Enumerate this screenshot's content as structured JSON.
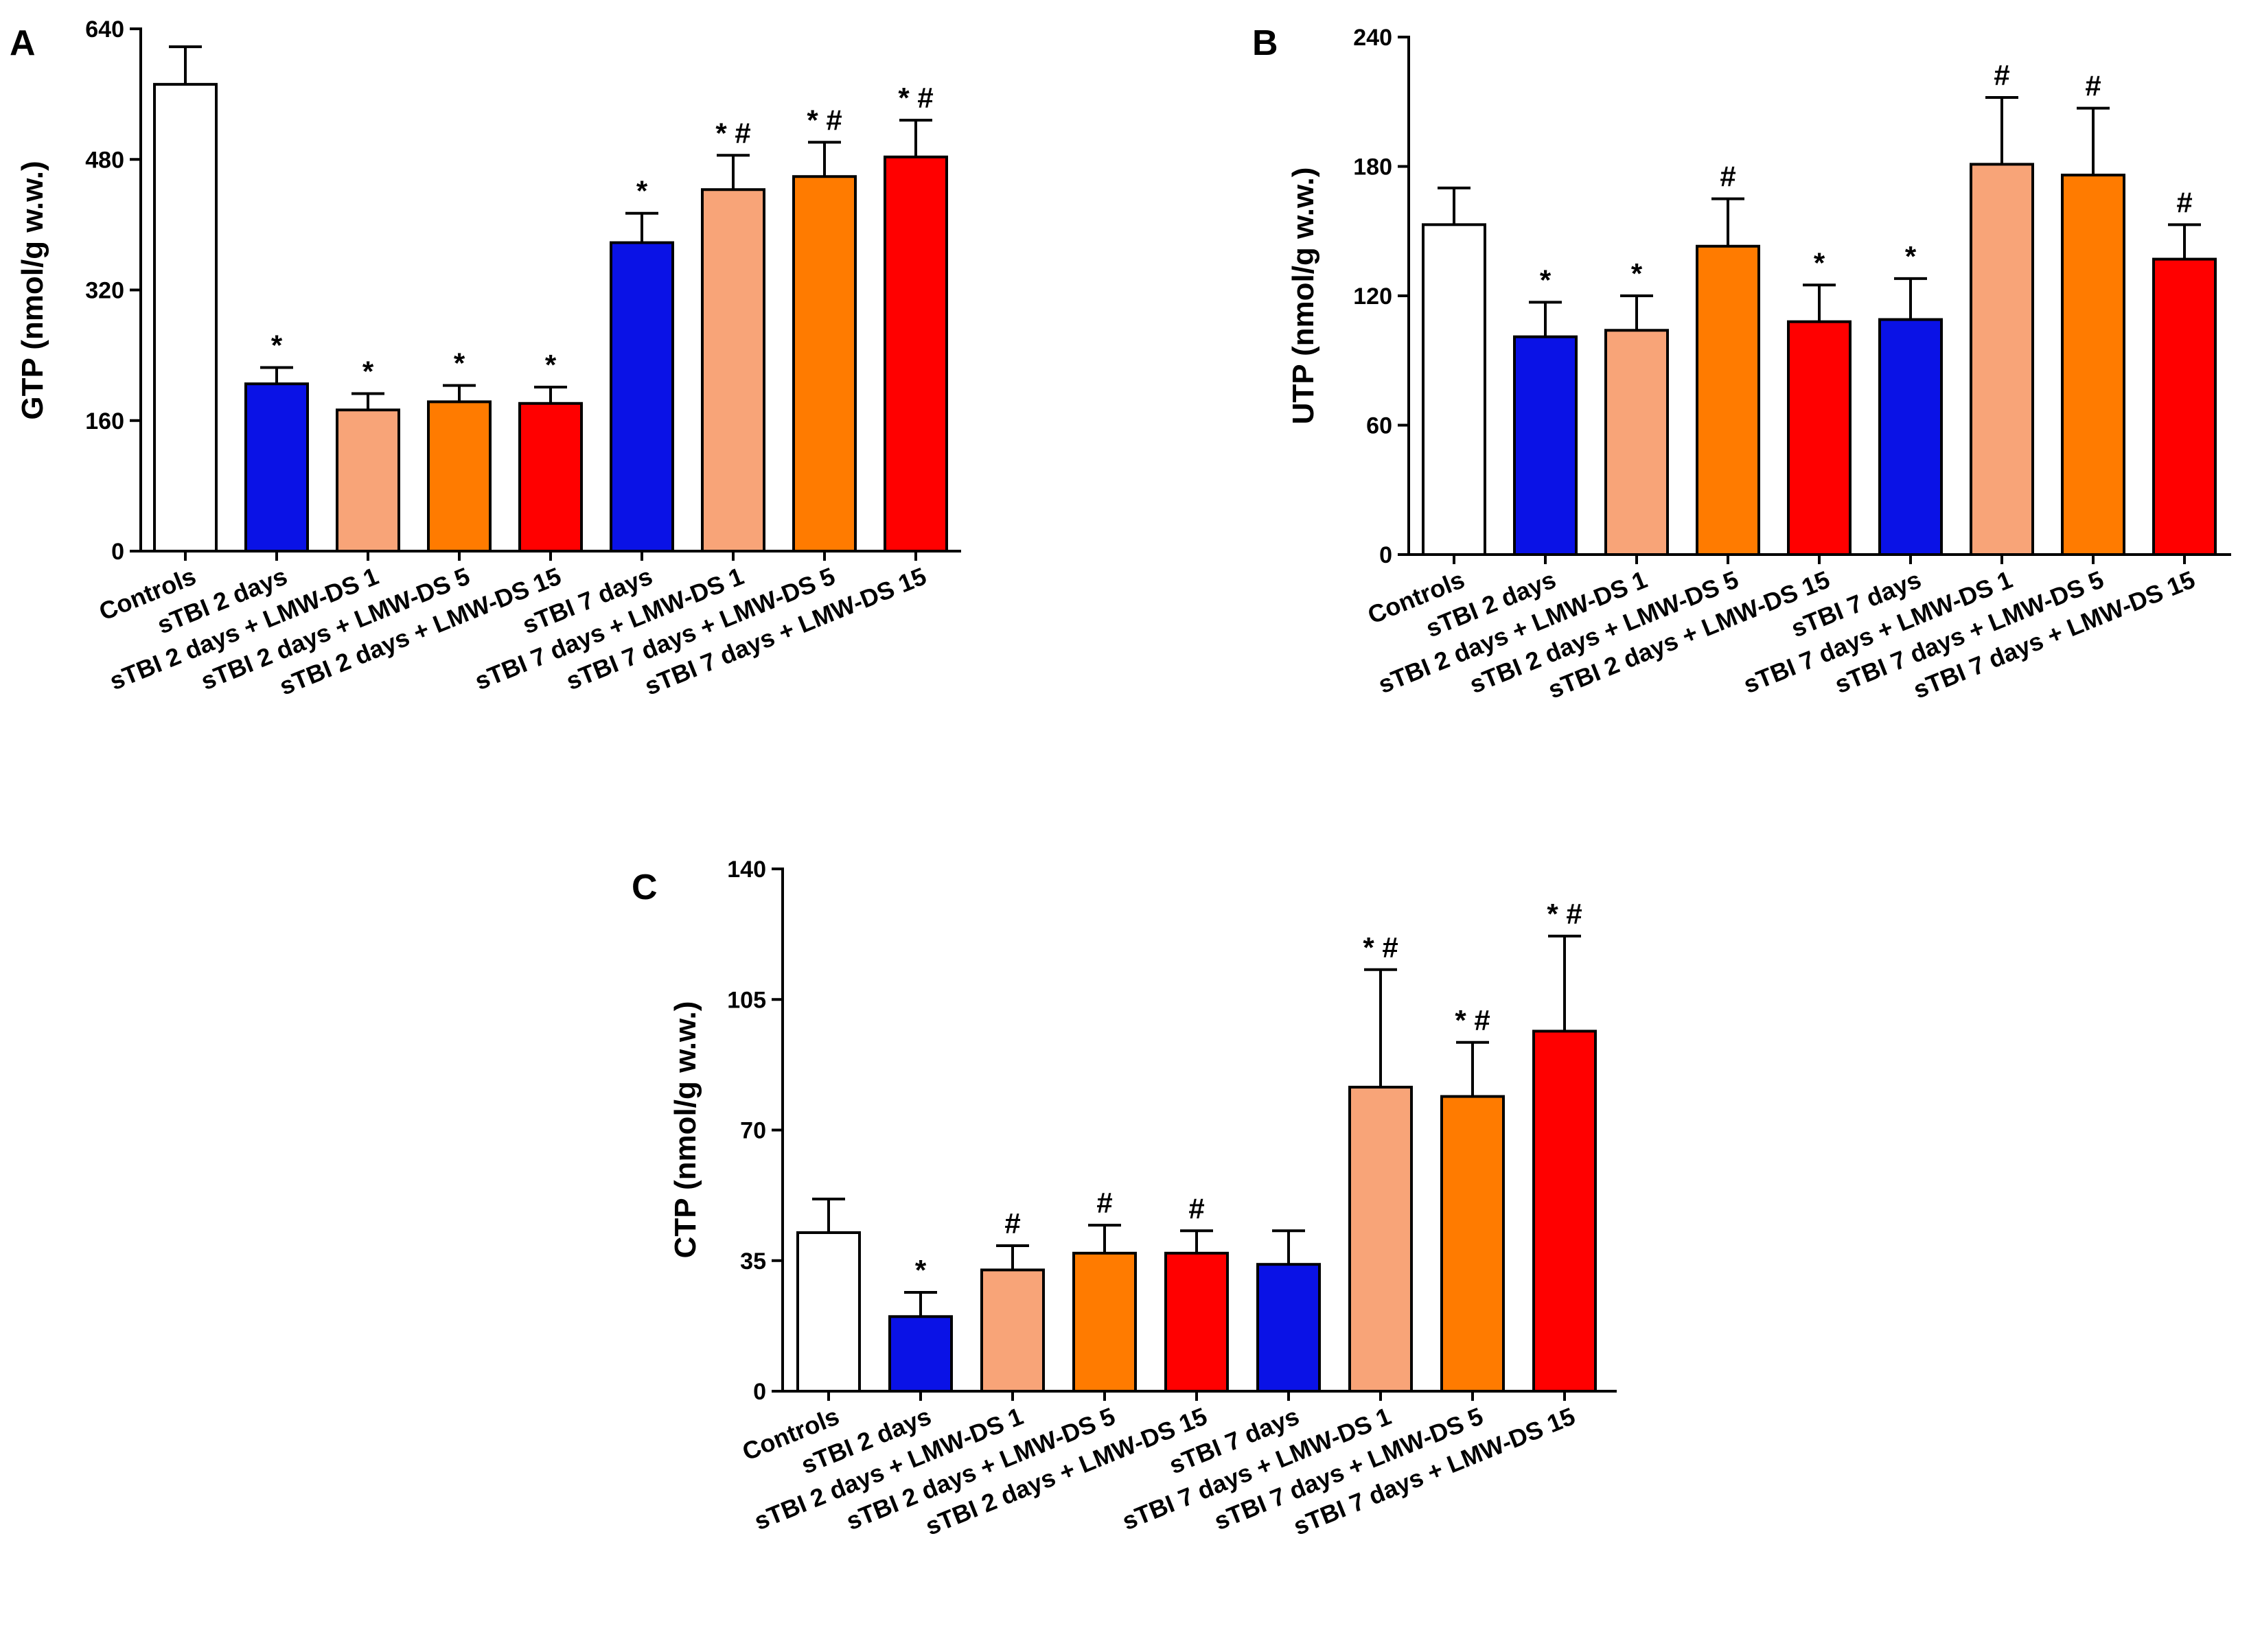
{
  "chart_data": [
    {
      "type": "bar",
      "panel": "A",
      "ylabel": "GTP (nmol/g w.w.)",
      "ylim": [
        0,
        640
      ],
      "yticks": [
        0,
        160,
        320,
        480,
        640
      ],
      "categories": [
        "Controls",
        "sTBI 2 days",
        "sTBI 2 days + LMW-DS 1",
        "sTBI 2 days + LMW-DS 5",
        "sTBI 2 days + LMW-DS 15",
        "sTBI 7 days",
        "sTBI 7 days + LMW-DS 1",
        "sTBI 7 days + LMW-DS 5",
        "sTBI 7 days + LMW-DS 15"
      ],
      "values": [
        572,
        205,
        173,
        183,
        181,
        378,
        443,
        459,
        483
      ],
      "errors": [
        46,
        20,
        20,
        20,
        20,
        36,
        42,
        42,
        45
      ],
      "colors": [
        "#ffffff",
        "#0a12e6",
        "#f8a478",
        "#ff7b00",
        "#ff0000",
        "#0a12e6",
        "#f8a478",
        "#ff7b00",
        "#ff0000"
      ],
      "annotations": [
        "",
        "*",
        "*",
        "*",
        "*",
        "*",
        "* #",
        "* #",
        "* #"
      ]
    },
    {
      "type": "bar",
      "panel": "B",
      "ylabel": "UTP (nmol/g w.w.)",
      "ylim": [
        0,
        240
      ],
      "yticks": [
        0,
        60,
        120,
        180,
        240
      ],
      "categories": [
        "Controls",
        "sTBI 2 days",
        "sTBI 2 days + LMW-DS 1",
        "sTBI 2 days + LMW-DS 5",
        "sTBI 2 days + LMW-DS 15",
        "sTBI 7 days",
        "sTBI 7 days + LMW-DS 1",
        "sTBI 7 days + LMW-DS 5",
        "sTBI 7 days + LMW-DS 15"
      ],
      "values": [
        153,
        101,
        104,
        143,
        108,
        109,
        181,
        176,
        137
      ],
      "errors": [
        17,
        16,
        16,
        22,
        17,
        19,
        31,
        31,
        16
      ],
      "colors": [
        "#ffffff",
        "#0a12e6",
        "#f8a478",
        "#ff7b00",
        "#ff0000",
        "#0a12e6",
        "#f8a478",
        "#ff7b00",
        "#ff0000"
      ],
      "annotations": [
        "",
        "*",
        "*",
        "#",
        "*",
        "*",
        "#",
        "#",
        "#"
      ]
    },
    {
      "type": "bar",
      "panel": "C",
      "ylabel": "CTP (nmol/g w.w.)",
      "ylim": [
        0,
        140
      ],
      "yticks": [
        0,
        35,
        70,
        105,
        140
      ],
      "categories": [
        "Controls",
        "sTBI 2 days",
        "sTBI 2 days + LMW-DS 1",
        "sTBI 2 days + LMW-DS 5",
        "sTBI 2 days + LMW-DS 15",
        "sTBI 7 days",
        "sTBI 7 days + LMW-DS 1",
        "sTBI 7 days + LMW-DS 5",
        "sTBI 7 days + LMW-DS 15"
      ],
      "values": [
        42.5,
        20,
        32.5,
        37,
        37,
        34,
        81.5,
        79,
        96.5
      ],
      "errors": [
        9,
        6.5,
        6.5,
        7.5,
        6,
        9,
        31.5,
        14.5,
        25.5
      ],
      "colors": [
        "#ffffff",
        "#0a12e6",
        "#f8a478",
        "#ff7b00",
        "#ff0000",
        "#0a12e6",
        "#f8a478",
        "#ff7b00",
        "#ff0000"
      ],
      "annotations": [
        "",
        "*",
        "#",
        "#",
        "#",
        "",
        "* #",
        "* #",
        "* #"
      ]
    }
  ]
}
